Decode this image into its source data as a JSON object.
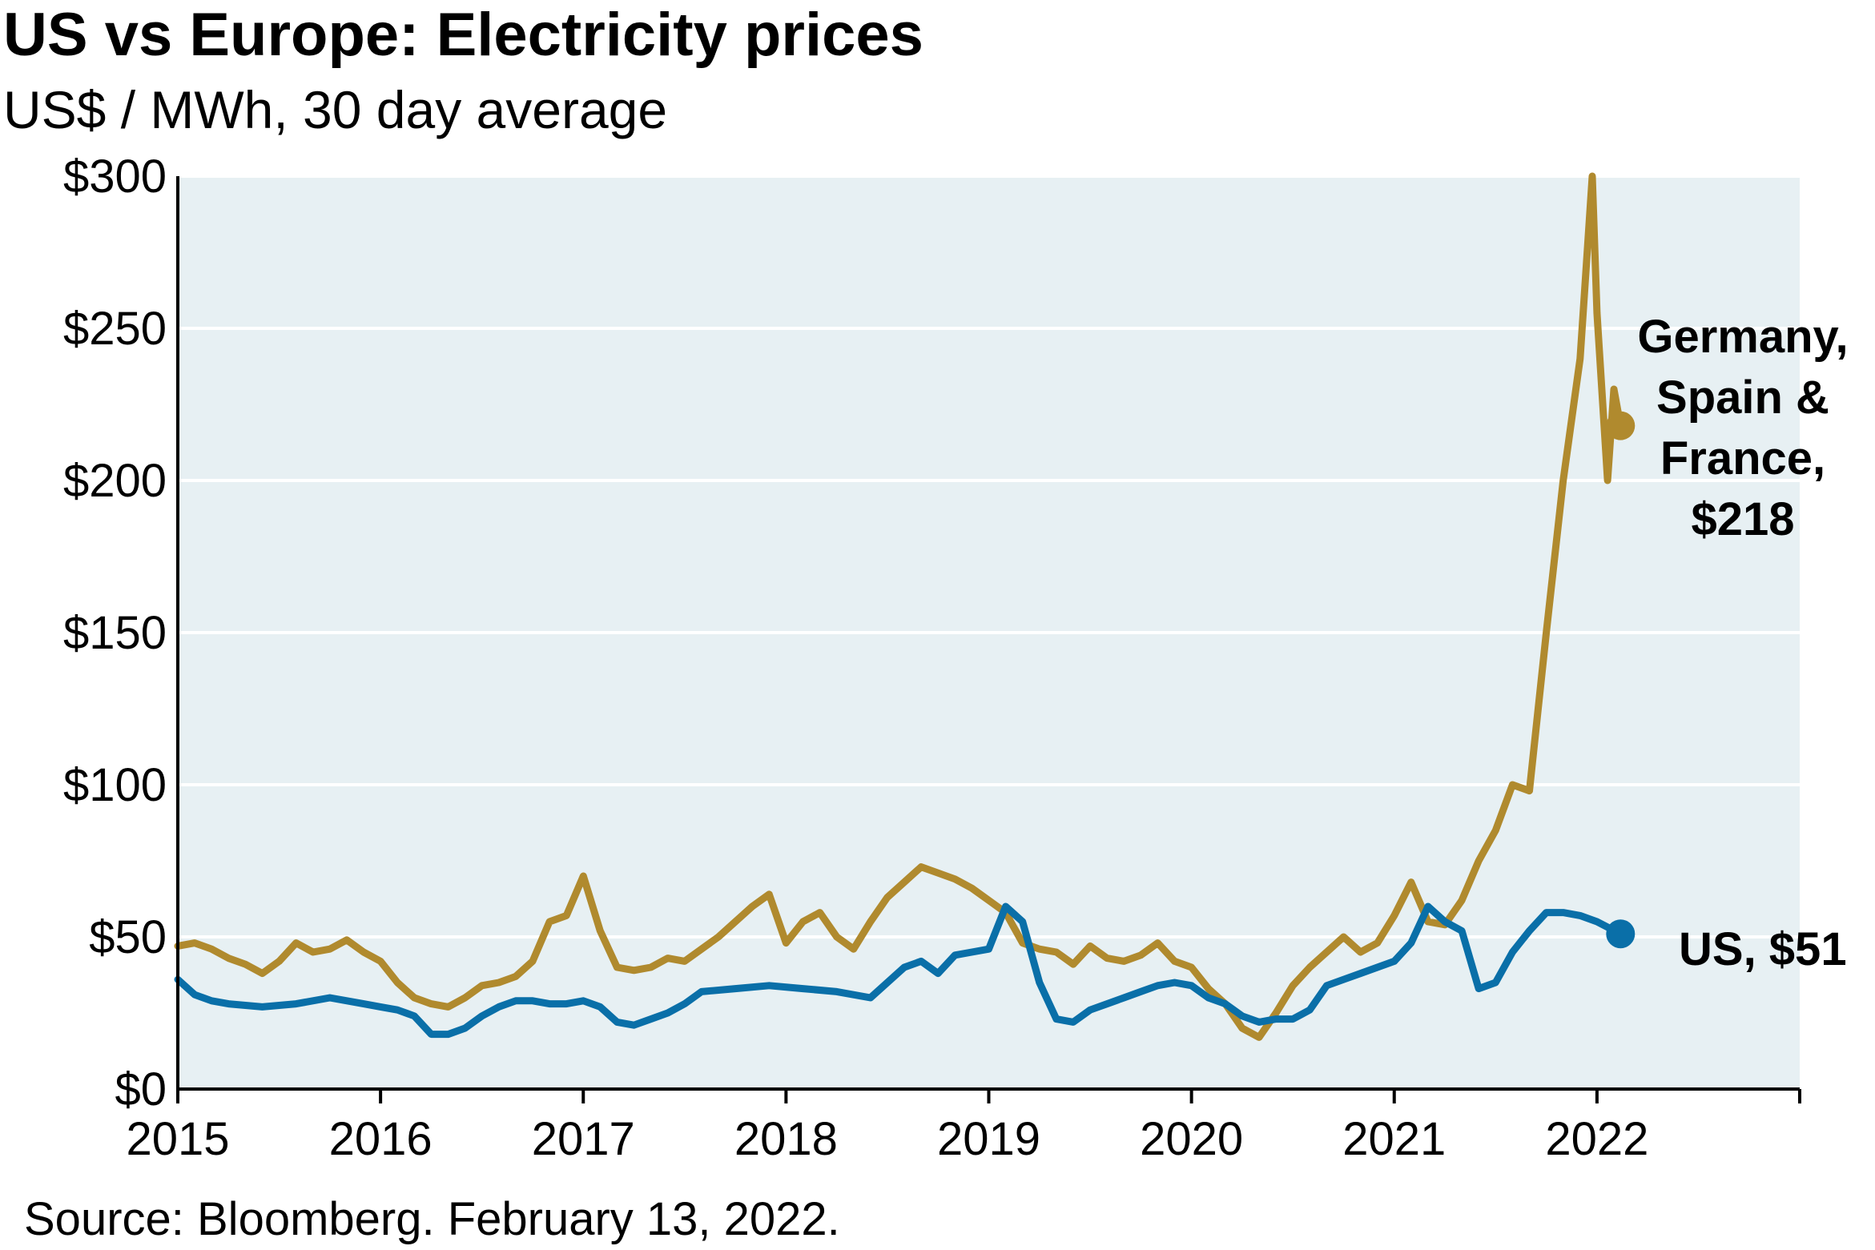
{
  "header": {
    "title": "US vs Europe: Electricity prices",
    "subtitle": "US$ / MWh, 30 day average"
  },
  "footer": {
    "source": "Source: Bloomberg. February 13, 2022."
  },
  "colors": {
    "europe": "#B08A2E",
    "us": "#0A6FA8",
    "plot_background": "#E7F0F3",
    "grid": "#FFFFFF",
    "axis": "#000000"
  },
  "chart_data": {
    "type": "line",
    "title": "US vs Europe: Electricity prices",
    "subtitle": "US$ / MWh, 30 day average",
    "xlabel": "",
    "ylabel": "",
    "xlim": [
      "2015-01",
      "2023-01"
    ],
    "ylim": [
      0,
      300
    ],
    "x_ticks": [
      "2015",
      "2016",
      "2017",
      "2018",
      "2019",
      "2020",
      "2021",
      "2022"
    ],
    "y_ticks": [
      "$0",
      "$50",
      "$100",
      "$150",
      "$200",
      "$250",
      "$300"
    ],
    "grid": "horizontal",
    "legend": "none (direct end labels)",
    "series": [
      {
        "name": "Germany, Spain & France",
        "end_label": [
          "Germany,",
          "Spain &",
          "France,",
          "$218"
        ],
        "end_value": 218,
        "points": [
          [
            "2015-01",
            47
          ],
          [
            "2015-02",
            48
          ],
          [
            "2015-03",
            46
          ],
          [
            "2015-04",
            43
          ],
          [
            "2015-05",
            41
          ],
          [
            "2015-06",
            38
          ],
          [
            "2015-07",
            42
          ],
          [
            "2015-08",
            48
          ],
          [
            "2015-09",
            45
          ],
          [
            "2015-10",
            46
          ],
          [
            "2015-11",
            49
          ],
          [
            "2015-12",
            45
          ],
          [
            "2016-01",
            42
          ],
          [
            "2016-02",
            35
          ],
          [
            "2016-03",
            30
          ],
          [
            "2016-04",
            28
          ],
          [
            "2016-05",
            27
          ],
          [
            "2016-06",
            30
          ],
          [
            "2016-07",
            34
          ],
          [
            "2016-08",
            35
          ],
          [
            "2016-09",
            37
          ],
          [
            "2016-10",
            42
          ],
          [
            "2016-11",
            55
          ],
          [
            "2016-12",
            57
          ],
          [
            "2017-01",
            70
          ],
          [
            "2017-02",
            52
          ],
          [
            "2017-03",
            40
          ],
          [
            "2017-04",
            39
          ],
          [
            "2017-05",
            40
          ],
          [
            "2017-06",
            43
          ],
          [
            "2017-07",
            42
          ],
          [
            "2017-08",
            46
          ],
          [
            "2017-09",
            50
          ],
          [
            "2017-10",
            55
          ],
          [
            "2017-11",
            60
          ],
          [
            "2017-12",
            64
          ],
          [
            "2018-01",
            48
          ],
          [
            "2018-02",
            55
          ],
          [
            "2018-03",
            58
          ],
          [
            "2018-04",
            50
          ],
          [
            "2018-05",
            46
          ],
          [
            "2018-06",
            55
          ],
          [
            "2018-07",
            63
          ],
          [
            "2018-08",
            68
          ],
          [
            "2018-09",
            73
          ],
          [
            "2018-10",
            71
          ],
          [
            "2018-11",
            69
          ],
          [
            "2018-12",
            66
          ],
          [
            "2019-01",
            62
          ],
          [
            "2019-02",
            58
          ],
          [
            "2019-03",
            48
          ],
          [
            "2019-04",
            46
          ],
          [
            "2019-05",
            45
          ],
          [
            "2019-06",
            41
          ],
          [
            "2019-07",
            47
          ],
          [
            "2019-08",
            43
          ],
          [
            "2019-09",
            42
          ],
          [
            "2019-10",
            44
          ],
          [
            "2019-11",
            48
          ],
          [
            "2019-12",
            42
          ],
          [
            "2020-01",
            40
          ],
          [
            "2020-02",
            33
          ],
          [
            "2020-03",
            28
          ],
          [
            "2020-04",
            20
          ],
          [
            "2020-05",
            17
          ],
          [
            "2020-06",
            25
          ],
          [
            "2020-07",
            34
          ],
          [
            "2020-08",
            40
          ],
          [
            "2020-09",
            45
          ],
          [
            "2020-10",
            50
          ],
          [
            "2020-11",
            45
          ],
          [
            "2020-12",
            48
          ],
          [
            "2021-01",
            57
          ],
          [
            "2021-02",
            68
          ],
          [
            "2021-03",
            55
          ],
          [
            "2021-04",
            54
          ],
          [
            "2021-05",
            62
          ],
          [
            "2021-06",
            75
          ],
          [
            "2021-07",
            85
          ],
          [
            "2021-08",
            100
          ],
          [
            "2021-09",
            98
          ],
          [
            "2021-10",
            150
          ],
          [
            "2021-11",
            200
          ],
          [
            "2021-12",
            240
          ],
          [
            "2021-12-23",
            300
          ],
          [
            "2022-01",
            255
          ],
          [
            "2022-01-20",
            200
          ],
          [
            "2022-02",
            230
          ],
          [
            "2022-02-13",
            218
          ]
        ]
      },
      {
        "name": "US",
        "end_label": [
          "US, $51"
        ],
        "end_value": 51,
        "points": [
          [
            "2015-01",
            36
          ],
          [
            "2015-02",
            31
          ],
          [
            "2015-03",
            29
          ],
          [
            "2015-04",
            28
          ],
          [
            "2015-06",
            27
          ],
          [
            "2015-08",
            28
          ],
          [
            "2015-10",
            30
          ],
          [
            "2015-12",
            28
          ],
          [
            "2016-01",
            27
          ],
          [
            "2016-02",
            26
          ],
          [
            "2016-03",
            24
          ],
          [
            "2016-04",
            18
          ],
          [
            "2016-05",
            18
          ],
          [
            "2016-06",
            20
          ],
          [
            "2016-07",
            24
          ],
          [
            "2016-08",
            27
          ],
          [
            "2016-09",
            29
          ],
          [
            "2016-10",
            29
          ],
          [
            "2016-11",
            28
          ],
          [
            "2016-12",
            28
          ],
          [
            "2017-01",
            29
          ],
          [
            "2017-02",
            27
          ],
          [
            "2017-03",
            22
          ],
          [
            "2017-04",
            21
          ],
          [
            "2017-05",
            23
          ],
          [
            "2017-06",
            25
          ],
          [
            "2017-07",
            28
          ],
          [
            "2017-08",
            32
          ],
          [
            "2017-10",
            33
          ],
          [
            "2017-12",
            34
          ],
          [
            "2018-02",
            33
          ],
          [
            "2018-04",
            32
          ],
          [
            "2018-06",
            30
          ],
          [
            "2018-07",
            35
          ],
          [
            "2018-08",
            40
          ],
          [
            "2018-09",
            42
          ],
          [
            "2018-10",
            38
          ],
          [
            "2018-11",
            44
          ],
          [
            "2018-12",
            45
          ],
          [
            "2019-01",
            46
          ],
          [
            "2019-02",
            60
          ],
          [
            "2019-03",
            55
          ],
          [
            "2019-04",
            35
          ],
          [
            "2019-05",
            23
          ],
          [
            "2019-06",
            22
          ],
          [
            "2019-07",
            26
          ],
          [
            "2019-08",
            28
          ],
          [
            "2019-09",
            30
          ],
          [
            "2019-10",
            32
          ],
          [
            "2019-11",
            34
          ],
          [
            "2019-12",
            35
          ],
          [
            "2020-01",
            34
          ],
          [
            "2020-02",
            30
          ],
          [
            "2020-03",
            28
          ],
          [
            "2020-04",
            24
          ],
          [
            "2020-05",
            22
          ],
          [
            "2020-06",
            23
          ],
          [
            "2020-07",
            23
          ],
          [
            "2020-08",
            26
          ],
          [
            "2020-09",
            34
          ],
          [
            "2020-10",
            36
          ],
          [
            "2020-11",
            38
          ],
          [
            "2020-12",
            40
          ],
          [
            "2021-01",
            42
          ],
          [
            "2021-02",
            48
          ],
          [
            "2021-03",
            60
          ],
          [
            "2021-04",
            55
          ],
          [
            "2021-05",
            52
          ],
          [
            "2021-06",
            33
          ],
          [
            "2021-07",
            35
          ],
          [
            "2021-08",
            45
          ],
          [
            "2021-09",
            52
          ],
          [
            "2021-10",
            58
          ],
          [
            "2021-11",
            58
          ],
          [
            "2021-12",
            57
          ],
          [
            "2022-01",
            55
          ],
          [
            "2022-02-13",
            51
          ]
        ]
      }
    ]
  }
}
